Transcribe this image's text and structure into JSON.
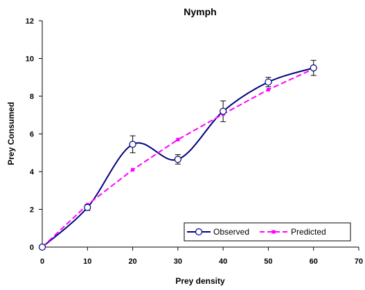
{
  "chart_data": {
    "type": "line",
    "title": "Nymph",
    "xlabel": "Prey density",
    "ylabel": "Prey Consumed",
    "xlim": [
      0,
      70
    ],
    "ylim": [
      0,
      12
    ],
    "x_ticks": [
      0,
      10,
      20,
      30,
      40,
      50,
      60,
      70
    ],
    "y_ticks": [
      0,
      2,
      4,
      6,
      8,
      10,
      12
    ],
    "grid": false,
    "legend_position": "bottom-right",
    "series": [
      {
        "name": "Observed",
        "style": "smoothed solid line with open circle markers",
        "color": "#000080",
        "marker_fill": "#ffffff",
        "x": [
          0,
          10,
          20,
          30,
          40,
          50,
          60
        ],
        "y": [
          0,
          2.1,
          5.45,
          4.65,
          7.2,
          8.75,
          9.5
        ],
        "error": [
          0,
          0.15,
          0.45,
          0.25,
          0.55,
          0.25,
          0.4
        ]
      },
      {
        "name": "Predicted",
        "style": "dashed line with square markers",
        "color": "#ff00ff",
        "x": [
          0,
          10,
          20,
          30,
          40,
          50,
          60
        ],
        "y": [
          0,
          2.25,
          4.1,
          5.7,
          7.05,
          8.35,
          9.45
        ]
      }
    ]
  }
}
